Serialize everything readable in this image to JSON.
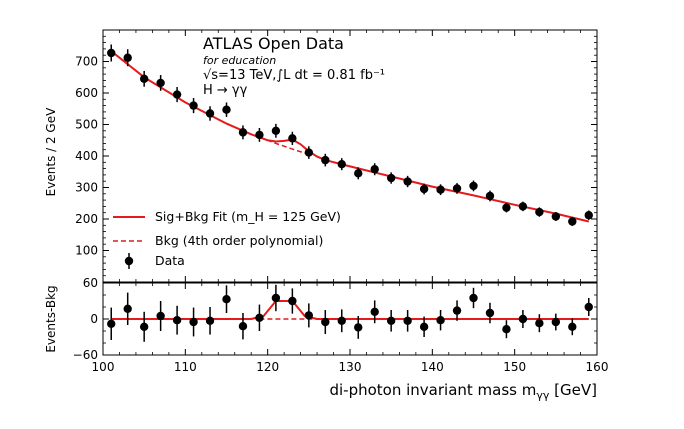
{
  "chart_data": [
    {
      "type": "scatter",
      "panel": "main",
      "ylabel": "Events / 2 GeV",
      "xlim": [
        100,
        160
      ],
      "ylim": [
        0,
        800
      ],
      "xticks": [
        "100",
        "110",
        "120",
        "130",
        "140",
        "150",
        "160"
      ],
      "yticks": [
        "100",
        "200",
        "300",
        "400",
        "500",
        "600",
        "700"
      ],
      "annotation": {
        "title": "ATLAS Open Data",
        "subtitle": "for education",
        "lumi": "√s=13 TeV,∫L dt = 0.81 fb⁻¹",
        "process": "H → γγ"
      },
      "legend_position": "lower-left",
      "legend": [
        {
          "label": "Sig+Bkg Fit (m_H = 125 GeV)",
          "style": "solid-line",
          "color": "#e41a1c"
        },
        {
          "label": "Bkg (4th order polynomial)",
          "style": "dashed-line",
          "color": "#e41a1c"
        },
        {
          "label": "Data",
          "style": "marker-errorbar",
          "color": "#000000"
        }
      ],
      "series": [
        {
          "name": "Data",
          "x": [
            101,
            103,
            105,
            107,
            109,
            111,
            113,
            115,
            117,
            119,
            121,
            123,
            125,
            127,
            129,
            131,
            133,
            135,
            137,
            139,
            141,
            143,
            145,
            147,
            149,
            151,
            153,
            155,
            157,
            159
          ],
          "y": [
            727,
            712,
            645,
            632,
            595,
            560,
            535,
            547,
            475,
            467,
            480,
            456,
            411,
            387,
            374,
            345,
            358,
            330,
            319,
            295,
            293,
            297,
            305,
            273,
            236,
            240,
            222,
            208,
            192,
            212
          ],
          "yerr": [
            27,
            27,
            25,
            25,
            24,
            24,
            23,
            23,
            22,
            22,
            22,
            21,
            20,
            20,
            19,
            19,
            19,
            18,
            18,
            17,
            17,
            17,
            17,
            17,
            15,
            15,
            15,
            14,
            14,
            15
          ]
        },
        {
          "name": "Sig+Bkg Fit (m_H = 125 GeV)",
          "x": [
            101,
            105,
            110,
            115,
            118,
            120,
            121,
            122,
            123,
            124,
            125,
            126,
            127,
            130,
            135,
            140,
            145,
            150,
            155,
            159
          ],
          "y": [
            733,
            650,
            570,
            503,
            469,
            450,
            446,
            448,
            452,
            437,
            415,
            398,
            387,
            367,
            335,
            303,
            275,
            245,
            217,
            192
          ]
        },
        {
          "name": "Bkg (4th order polynomial)",
          "x": [
            119,
            121,
            123,
            125
          ],
          "y": [
            460,
            440,
            422,
            405
          ]
        }
      ]
    },
    {
      "type": "scatter",
      "panel": "residual",
      "xlabel": "di-photon invariant mass m_γγ [GeV]",
      "ylabel": "Events-Bkg",
      "xlim": [
        100,
        160
      ],
      "ylim": [
        -60,
        60
      ],
      "xticks": [
        "100",
        "110",
        "120",
        "130",
        "140",
        "150",
        "160"
      ],
      "yticks": [
        "−60",
        "0",
        "60"
      ],
      "series": [
        {
          "name": "Data",
          "x": [
            101,
            103,
            105,
            107,
            109,
            111,
            113,
            115,
            117,
            119,
            121,
            123,
            125,
            127,
            129,
            131,
            133,
            135,
            137,
            139,
            141,
            143,
            145,
            147,
            149,
            151,
            153,
            155,
            157,
            159
          ],
          "y": [
            -8,
            17,
            -13,
            5,
            -2,
            -5,
            -3,
            33,
            -12,
            2,
            35,
            30,
            6,
            -5,
            -3,
            -14,
            12,
            -3,
            -3,
            -13,
            -2,
            14,
            35,
            10,
            -17,
            0,
            -7,
            -5,
            -13,
            20
          ],
          "yerr": [
            27,
            27,
            25,
            25,
            24,
            24,
            23,
            23,
            22,
            22,
            22,
            21,
            20,
            20,
            19,
            19,
            19,
            18,
            18,
            17,
            17,
            17,
            17,
            17,
            15,
            15,
            15,
            14,
            14,
            15
          ]
        },
        {
          "name": "Sig+Bkg Fit (m_H = 125 GeV)",
          "x": [
            101,
            118,
            119.5,
            121,
            123,
            124.5,
            126,
            159
          ],
          "y": [
            0,
            0,
            5,
            30,
            30,
            5,
            0,
            0
          ]
        },
        {
          "name": "Bkg (4th order polynomial)",
          "x": [
            119,
            126
          ],
          "y": [
            0,
            0
          ]
        }
      ]
    }
  ]
}
